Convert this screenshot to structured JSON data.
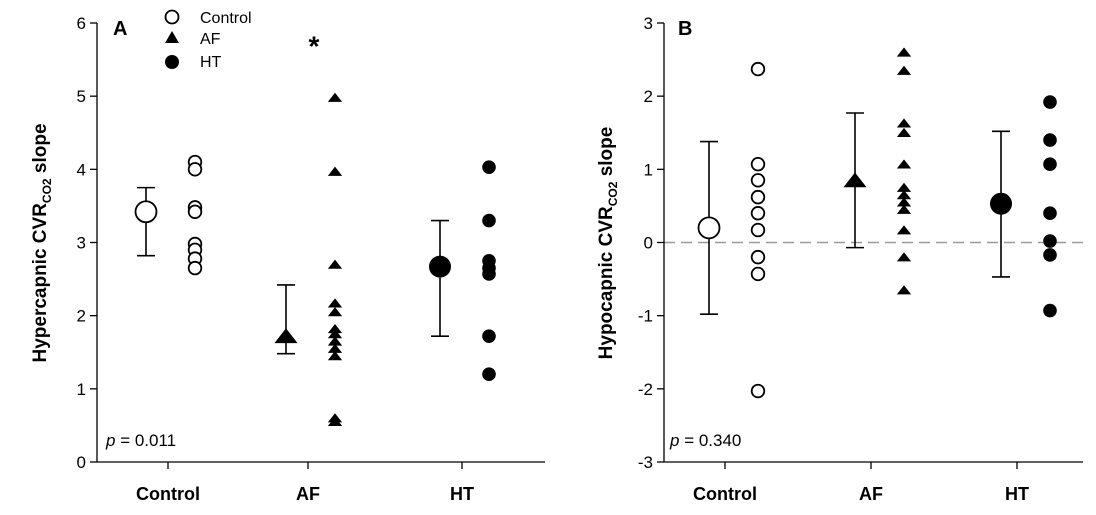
{
  "chart_data": [
    {
      "type": "scatter",
      "panel_label": "A",
      "ylabel": {
        "main": "Hypercapnic CVR",
        "subscript": "CO2",
        "suffix": " slope"
      },
      "categories": [
        "Control",
        "AF",
        "HT"
      ],
      "ylim": [
        0,
        6
      ],
      "yticks": [
        "0",
        "1",
        "2",
        "3",
        "4",
        "5",
        "6"
      ],
      "p_value": {
        "italic": "p",
        "text": " = 0.011"
      },
      "legend": [
        {
          "label": "Control",
          "marker": "open-circle"
        },
        {
          "label": "AF",
          "marker": "filled-triangle"
        },
        {
          "label": "HT",
          "marker": "filled-circle"
        }
      ],
      "significance_marker": {
        "text": "*",
        "category": "AF",
        "y": 5.8
      },
      "summary": [
        {
          "category": "Control",
          "marker": "open-circle",
          "center": 3.42,
          "lower": 2.82,
          "upper": 3.75
        },
        {
          "category": "AF",
          "marker": "filled-triangle",
          "center": 1.72,
          "lower": 1.48,
          "upper": 2.42
        },
        {
          "category": "HT",
          "marker": "filled-circle",
          "center": 2.67,
          "lower": 1.72,
          "upper": 3.3
        }
      ],
      "series": [
        {
          "category": "Control",
          "marker": "open-circle",
          "values": [
            4.1,
            4.0,
            3.48,
            3.42,
            2.98,
            2.9,
            2.78,
            2.65
          ]
        },
        {
          "category": "AF",
          "marker": "filled-triangle",
          "values": [
            4.98,
            3.97,
            2.7,
            2.17,
            2.05,
            1.82,
            1.75,
            1.65,
            1.55,
            1.45,
            0.6,
            0.55
          ]
        },
        {
          "category": "HT",
          "marker": "filled-circle",
          "values": [
            4.03,
            3.3,
            2.75,
            2.65,
            2.57,
            1.72,
            1.2
          ]
        }
      ]
    },
    {
      "type": "scatter",
      "panel_label": "B",
      "ylabel": {
        "main": "Hypocapnic CVR",
        "subscript": "CO2",
        "suffix": " slope"
      },
      "categories": [
        "Control",
        "AF",
        "HT"
      ],
      "ylim": [
        -3,
        3
      ],
      "yticks": [
        "-3",
        "-2",
        "-1",
        "0",
        "1",
        "2",
        "3"
      ],
      "reference_line": {
        "y": 0,
        "style": "dashed",
        "color": "#9a9a9a"
      },
      "p_value": {
        "italic": "p",
        "text": " = 0.340"
      },
      "summary": [
        {
          "category": "Control",
          "marker": "open-circle",
          "center": 0.2,
          "lower": -0.98,
          "upper": 1.38
        },
        {
          "category": "AF",
          "marker": "filled-triangle",
          "center": 0.85,
          "lower": -0.07,
          "upper": 1.77
        },
        {
          "category": "HT",
          "marker": "filled-circle",
          "center": 0.53,
          "lower": -0.47,
          "upper": 1.52
        }
      ],
      "series": [
        {
          "category": "Control",
          "marker": "open-circle",
          "values": [
            2.37,
            1.07,
            0.85,
            0.62,
            0.4,
            0.17,
            -0.2,
            -0.43,
            -2.03
          ]
        },
        {
          "category": "AF",
          "marker": "filled-triangle",
          "values": [
            2.6,
            2.35,
            1.63,
            1.5,
            1.07,
            0.75,
            0.65,
            0.55,
            0.45,
            0.17,
            -0.2,
            -0.65
          ]
        },
        {
          "category": "HT",
          "marker": "filled-circle",
          "values": [
            1.92,
            1.4,
            1.07,
            0.4,
            0.02,
            -0.17,
            -0.93
          ]
        }
      ]
    }
  ]
}
